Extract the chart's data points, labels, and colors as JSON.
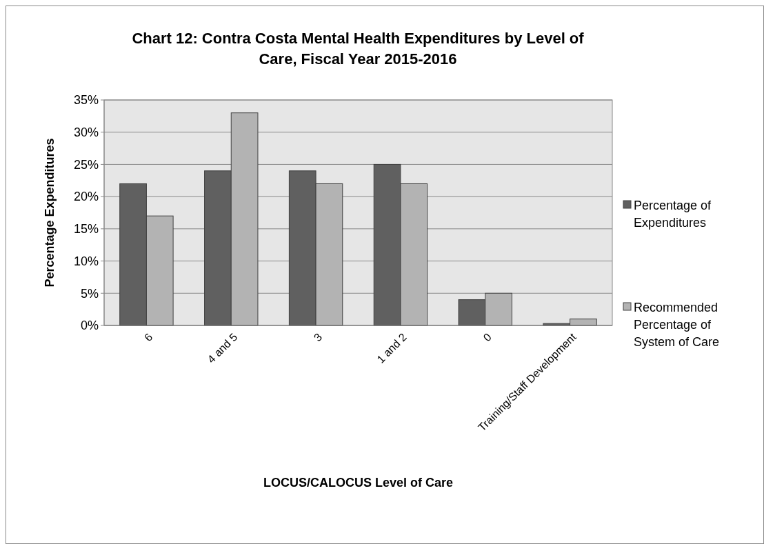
{
  "chart_data": {
    "type": "bar",
    "title": "Chart 12: Contra Costa Mental Health Expenditures by Level of Care, Fiscal Year 2015-2016",
    "xlabel": "LOCUS/CALOCUS Level of Care",
    "ylabel": "Percentage Expenditures",
    "categories": [
      "6",
      "4 and 5",
      "3",
      "1 and 2",
      "0",
      "Training/Staff Development"
    ],
    "series": [
      {
        "name": "Percentage of Expenditures",
        "color": "#606060",
        "values": [
          22,
          24,
          24,
          25,
          4,
          0.3
        ]
      },
      {
        "name": "Recommended Percentage of System of Care",
        "color": "#b3b3b3",
        "values": [
          17,
          33,
          22,
          22,
          5,
          1
        ]
      }
    ],
    "ylim": [
      0,
      35
    ],
    "yticks": [
      {
        "value": 0,
        "label": "0%"
      },
      {
        "value": 5,
        "label": "5%"
      },
      {
        "value": 10,
        "label": "10%"
      },
      {
        "value": 15,
        "label": "15%"
      },
      {
        "value": 20,
        "label": "20%"
      },
      {
        "value": 25,
        "label": "25%"
      },
      {
        "value": 30,
        "label": "30%"
      },
      {
        "value": 35,
        "label": "35%"
      }
    ],
    "grid": "y",
    "legend": "right"
  }
}
